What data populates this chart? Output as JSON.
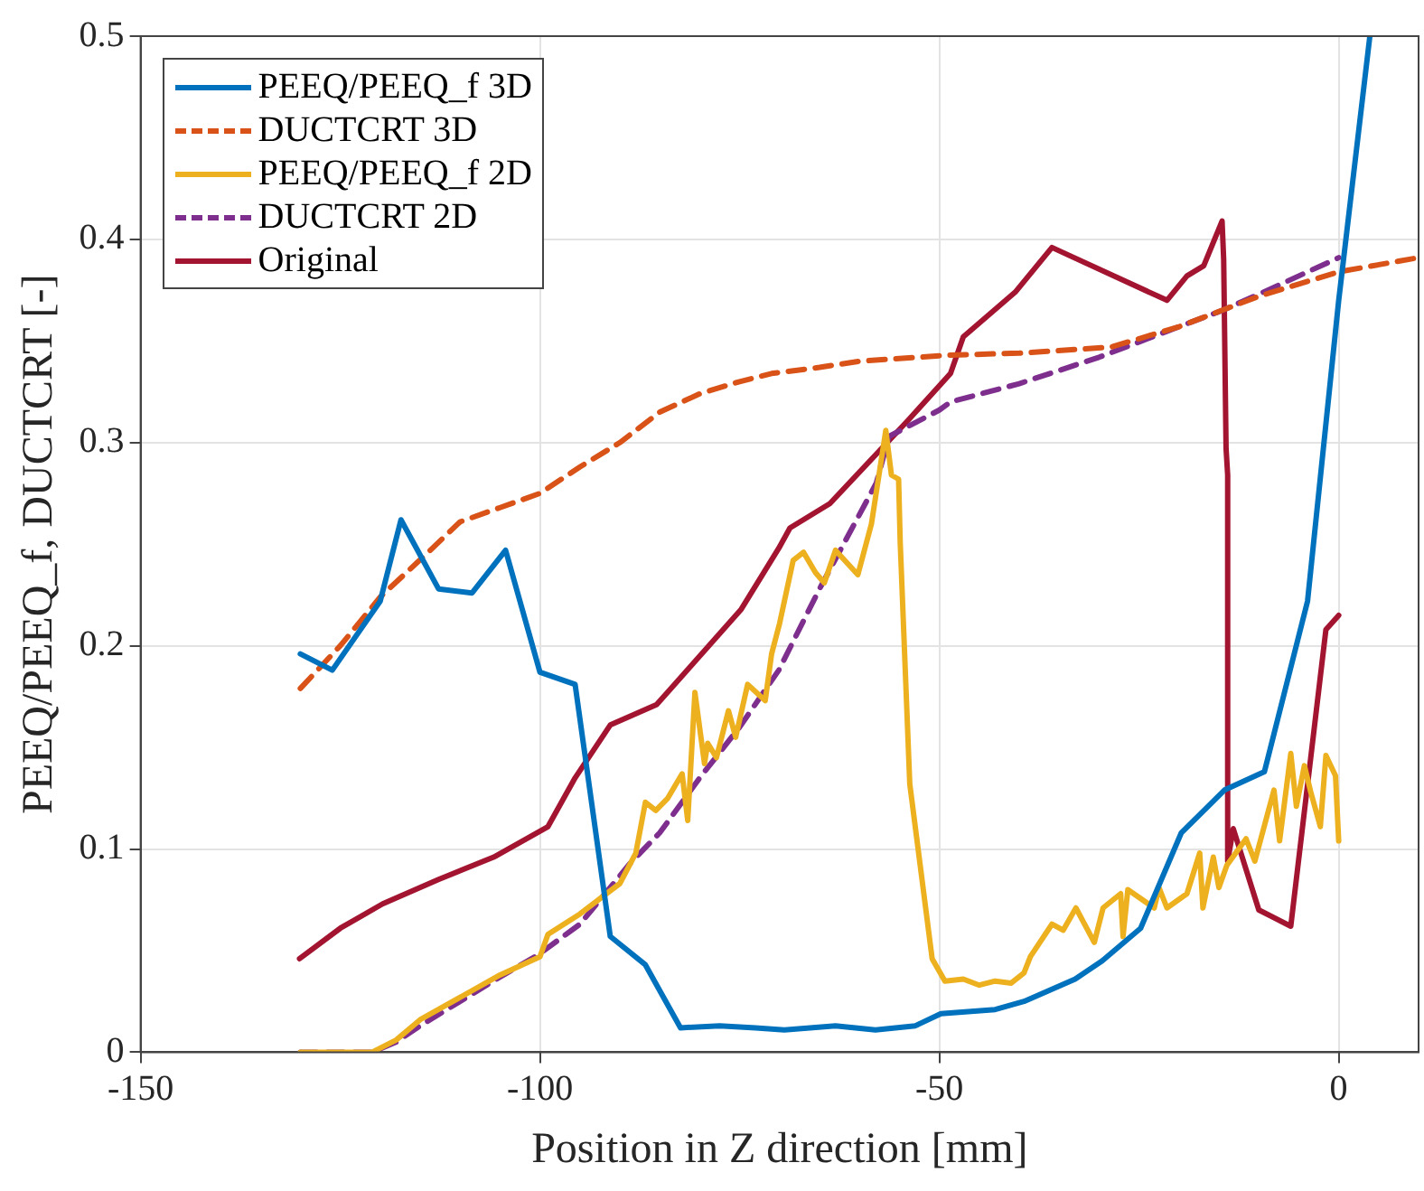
{
  "chart_data": {
    "type": "line",
    "xlabel": "Position in Z direction [mm]",
    "ylabel": "PEEQ/PEEQ_f, DUCTCRT [-]",
    "xlim": [
      -150,
      10
    ],
    "xticks": [
      -150,
      -100,
      -50,
      0
    ],
    "ylim": [
      0,
      0.5
    ],
    "yticks": [
      0,
      0.1,
      0.2,
      0.3,
      0.4,
      0.5
    ],
    "grid": true,
    "legend": "top left",
    "marker": "none",
    "series": [
      {
        "name": "PEEQ/PEEQ_f 3D",
        "color": "#0072bd",
        "line_style": "solid",
        "x": [
          -130,
          -126,
          -120,
          -117.4,
          -112.7,
          -108.5,
          -104.3,
          -100,
          -95.6,
          -91.2,
          -86.8,
          -82.4,
          -77.5,
          -73,
          -69.4,
          -63,
          -58,
          -53,
          -49.8,
          -43,
          -39.4,
          -33,
          -29.6,
          -24.8,
          -19.7,
          -14.3,
          -9.3,
          -3.9,
          0,
          3.9
        ],
        "values": [
          0.196,
          0.188,
          0.222,
          0.262,
          0.228,
          0.226,
          0.247,
          0.187,
          0.181,
          0.057,
          0.043,
          0.012,
          0.013,
          0.012,
          0.011,
          0.013,
          0.011,
          0.013,
          0.019,
          0.021,
          0.025,
          0.036,
          0.045,
          0.061,
          0.108,
          0.129,
          0.138,
          0.222,
          0.37,
          0.5
        ]
      },
      {
        "name": "DUCTCRT 3D",
        "color": "#d95319",
        "line_style": "dashed",
        "x": [
          -130,
          -125,
          -120,
          -114,
          -110,
          -105,
          -100,
          -95,
          -90,
          -85,
          -80,
          -75,
          -71,
          -65,
          -60,
          -49,
          -40,
          -28.5,
          -20,
          -10,
          0,
          10
        ],
        "values": [
          0.179,
          0.2,
          0.224,
          0.246,
          0.261,
          0.268,
          0.275,
          0.288,
          0.3,
          0.315,
          0.324,
          0.33,
          0.334,
          0.337,
          0.34,
          0.343,
          0.344,
          0.347,
          0.357,
          0.372,
          0.384,
          0.391
        ]
      },
      {
        "name": "PEEQ/PEEQ_f 2D",
        "color": "#edb120",
        "line_style": "solid",
        "x": [
          -130,
          -121,
          -118,
          -115,
          -110,
          -105,
          -100,
          -99,
          -95,
          -90,
          -88,
          -86.8,
          -85.5,
          -84,
          -82.2,
          -81.5,
          -80.6,
          -79.4,
          -79,
          -77.9,
          -76.4,
          -75.5,
          -74,
          -71.8,
          -71,
          -70,
          -68.3,
          -67,
          -65.5,
          -64.4,
          -63,
          -60.2,
          -58.5,
          -56.7,
          -56,
          -55.1,
          -54.9,
          -53.7,
          -50.9,
          -49.3,
          -47,
          -45,
          -43,
          -41,
          -39.4,
          -38.6,
          -35.9,
          -34.5,
          -32.9,
          -30.6,
          -29.5,
          -27.3,
          -27,
          -26.4,
          -23.1,
          -22.5,
          -21.5,
          -19,
          -17.4,
          -17,
          -15.7,
          -15,
          -14,
          -11.6,
          -10.5,
          -8.1,
          -7.4,
          -6,
          -5.3,
          -4.3,
          -3.5,
          -2.3,
          -1.6,
          -0.4,
          0
        ],
        "values": [
          0,
          0,
          0.006,
          0.016,
          0.027,
          0.038,
          0.047,
          0.058,
          0.068,
          0.083,
          0.098,
          0.123,
          0.119,
          0.125,
          0.137,
          0.114,
          0.177,
          0.142,
          0.152,
          0.145,
          0.168,
          0.155,
          0.181,
          0.173,
          0.196,
          0.211,
          0.242,
          0.246,
          0.236,
          0.231,
          0.247,
          0.235,
          0.26,
          0.306,
          0.284,
          0.282,
          0.251,
          0.132,
          0.046,
          0.035,
          0.036,
          0.033,
          0.035,
          0.034,
          0.039,
          0.047,
          0.063,
          0.06,
          0.071,
          0.054,
          0.071,
          0.078,
          0.057,
          0.08,
          0.071,
          0.081,
          0.071,
          0.078,
          0.098,
          0.071,
          0.096,
          0.081,
          0.092,
          0.105,
          0.094,
          0.129,
          0.104,
          0.147,
          0.121,
          0.141,
          0.128,
          0.111,
          0.146,
          0.136,
          0.104
        ]
      },
      {
        "name": "DUCTCRT 2D",
        "color": "#7e2f8e",
        "line_style": "dashed",
        "x": [
          -130,
          -121,
          -118,
          -115,
          -110,
          -105,
          -100.2,
          -95,
          -88.7,
          -85,
          -80,
          -75,
          -70.1,
          -65,
          -57.9,
          -56.3,
          -50,
          -48.6,
          -40,
          -30,
          -20,
          -14.6,
          -10,
          -5,
          0
        ],
        "values": [
          0,
          0,
          0.005,
          0.013,
          0.025,
          0.037,
          0.048,
          0.063,
          0.093,
          0.108,
          0.135,
          0.16,
          0.188,
          0.228,
          0.28,
          0.303,
          0.316,
          0.32,
          0.329,
          0.342,
          0.357,
          0.365,
          0.373,
          0.382,
          0.391
        ]
      },
      {
        "name": "Original",
        "color": "#a2142f",
        "line_style": "solid",
        "x": [
          -130.1,
          -125,
          -119.7,
          -112.7,
          -105.8,
          -99,
          -95.6,
          -91.2,
          -85.4,
          -74.8,
          -70.1,
          -68.7,
          -63.7,
          -53.9,
          -48.6,
          -47,
          -40.5,
          -35.9,
          -21.5,
          -19,
          -16.9,
          -14.6,
          -14.4,
          -14.1,
          -13.9,
          -13.9,
          -13.2,
          -10,
          -6,
          -1.6,
          0
        ],
        "values": [
          0.046,
          0.061,
          0.073,
          0.085,
          0.096,
          0.111,
          0.135,
          0.161,
          0.171,
          0.218,
          0.248,
          0.258,
          0.27,
          0.311,
          0.334,
          0.352,
          0.374,
          0.396,
          0.37,
          0.382,
          0.387,
          0.409,
          0.39,
          0.297,
          0.284,
          0.094,
          0.11,
          0.07,
          0.062,
          0.208,
          0.215
        ]
      }
    ]
  }
}
